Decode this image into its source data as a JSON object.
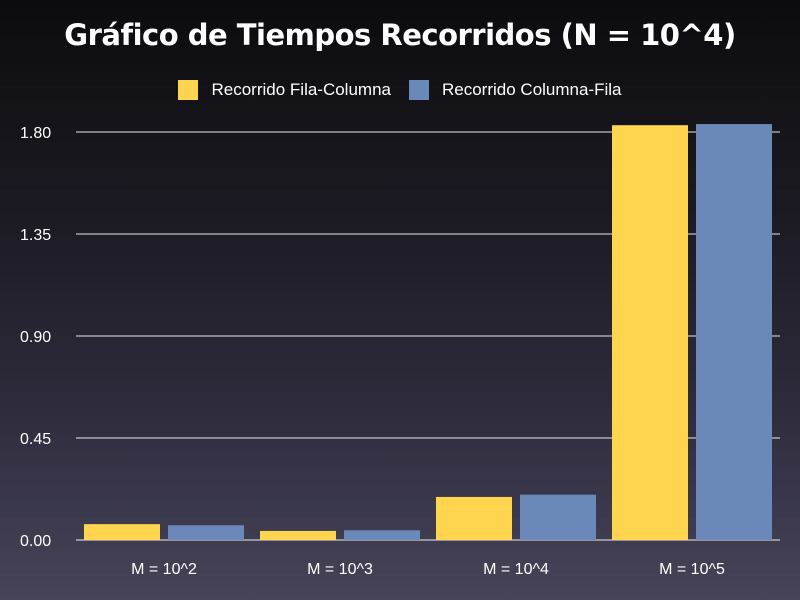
{
  "chart_data": {
    "type": "bar",
    "title": "Gráfico de Tiempos Recorridos (N = 10^4)",
    "xlabel": "",
    "ylabel": "",
    "categories": [
      "M = 10^2",
      "M = 10^3",
      "M = 10^4",
      "M = 10^5"
    ],
    "series": [
      {
        "name": "Recorrido Fila-Columna",
        "color": "#ffd54f",
        "values": [
          0.07,
          0.04,
          0.19,
          1.83
        ]
      },
      {
        "name": "Recorrido Columna-Fila",
        "color": "#6a88b8",
        "values": [
          0.065,
          0.043,
          0.2,
          1.835
        ]
      }
    ],
    "ylim": [
      0,
      1.8
    ],
    "yticks": [
      "0.00",
      "0.45",
      "0.90",
      "1.35",
      "1.80"
    ],
    "grid": true,
    "legend": "top-center"
  },
  "colors": {
    "grid": "#ffffff",
    "text": "#ffffff"
  }
}
